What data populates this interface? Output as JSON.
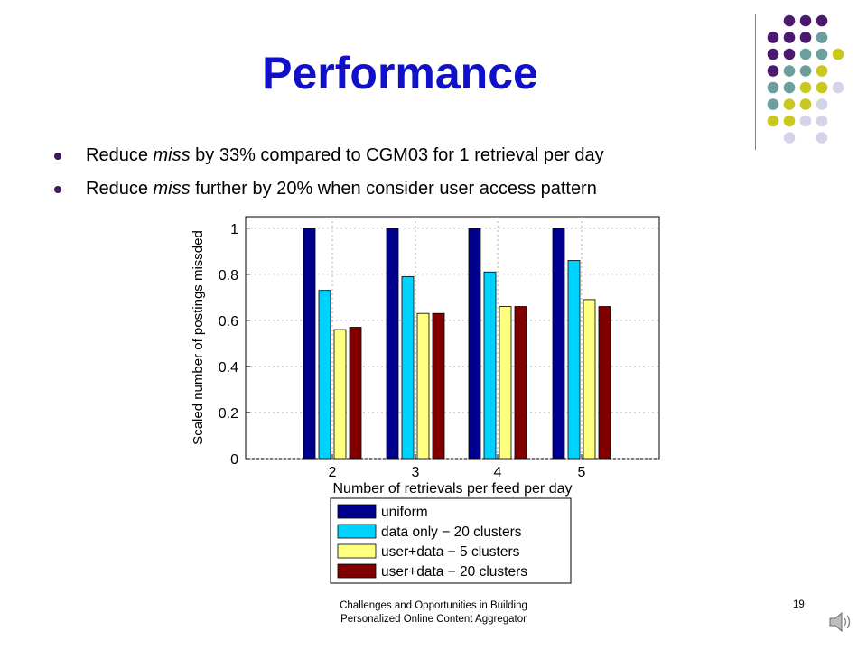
{
  "slide": {
    "title": "Performance",
    "bullets": [
      {
        "pre": "Reduce ",
        "em": "miss",
        "post": " by 33% compared to CGM03 for 1 retrieval per day"
      },
      {
        "pre": "Reduce ",
        "em": "miss",
        "post": " further by 20% when consider user access pattern"
      }
    ],
    "footer_line1": "Challenges and Opportunities in Building",
    "footer_line2": "Personalized Online Content Aggregator",
    "page_number": "19",
    "decor_colors": {
      "purple": "#4b1a6e",
      "teal": "#6b9e9c",
      "olive": "#c8c820",
      "lavender": "#d5d3e8"
    },
    "speaker_icon": "speaker-icon"
  },
  "chart_data": {
    "type": "bar",
    "categories": [
      "2",
      "3",
      "4",
      "5"
    ],
    "xlabel": "Number of retrievals per feed per day",
    "ylabel": "Scaled number of postings missded",
    "ylim": [
      0,
      1.05
    ],
    "yticks": [
      "0",
      "0.2",
      "0.4",
      "0.6",
      "0.8",
      "1"
    ],
    "grid": true,
    "legend_placement": "bottom",
    "series": [
      {
        "name": "uniform",
        "color": "#00008f",
        "values": [
          1.0,
          1.0,
          1.0,
          1.0
        ]
      },
      {
        "name": "data only − 20 clusters",
        "color": "#00d2ff",
        "values": [
          0.73,
          0.79,
          0.81,
          0.86
        ]
      },
      {
        "name": "user+data − 5 clusters",
        "color": "#ffff80",
        "values": [
          0.56,
          0.63,
          0.66,
          0.69
        ]
      },
      {
        "name": "user+data − 20 clusters",
        "color": "#800000",
        "values": [
          0.57,
          0.63,
          0.66,
          0.66
        ]
      }
    ]
  }
}
